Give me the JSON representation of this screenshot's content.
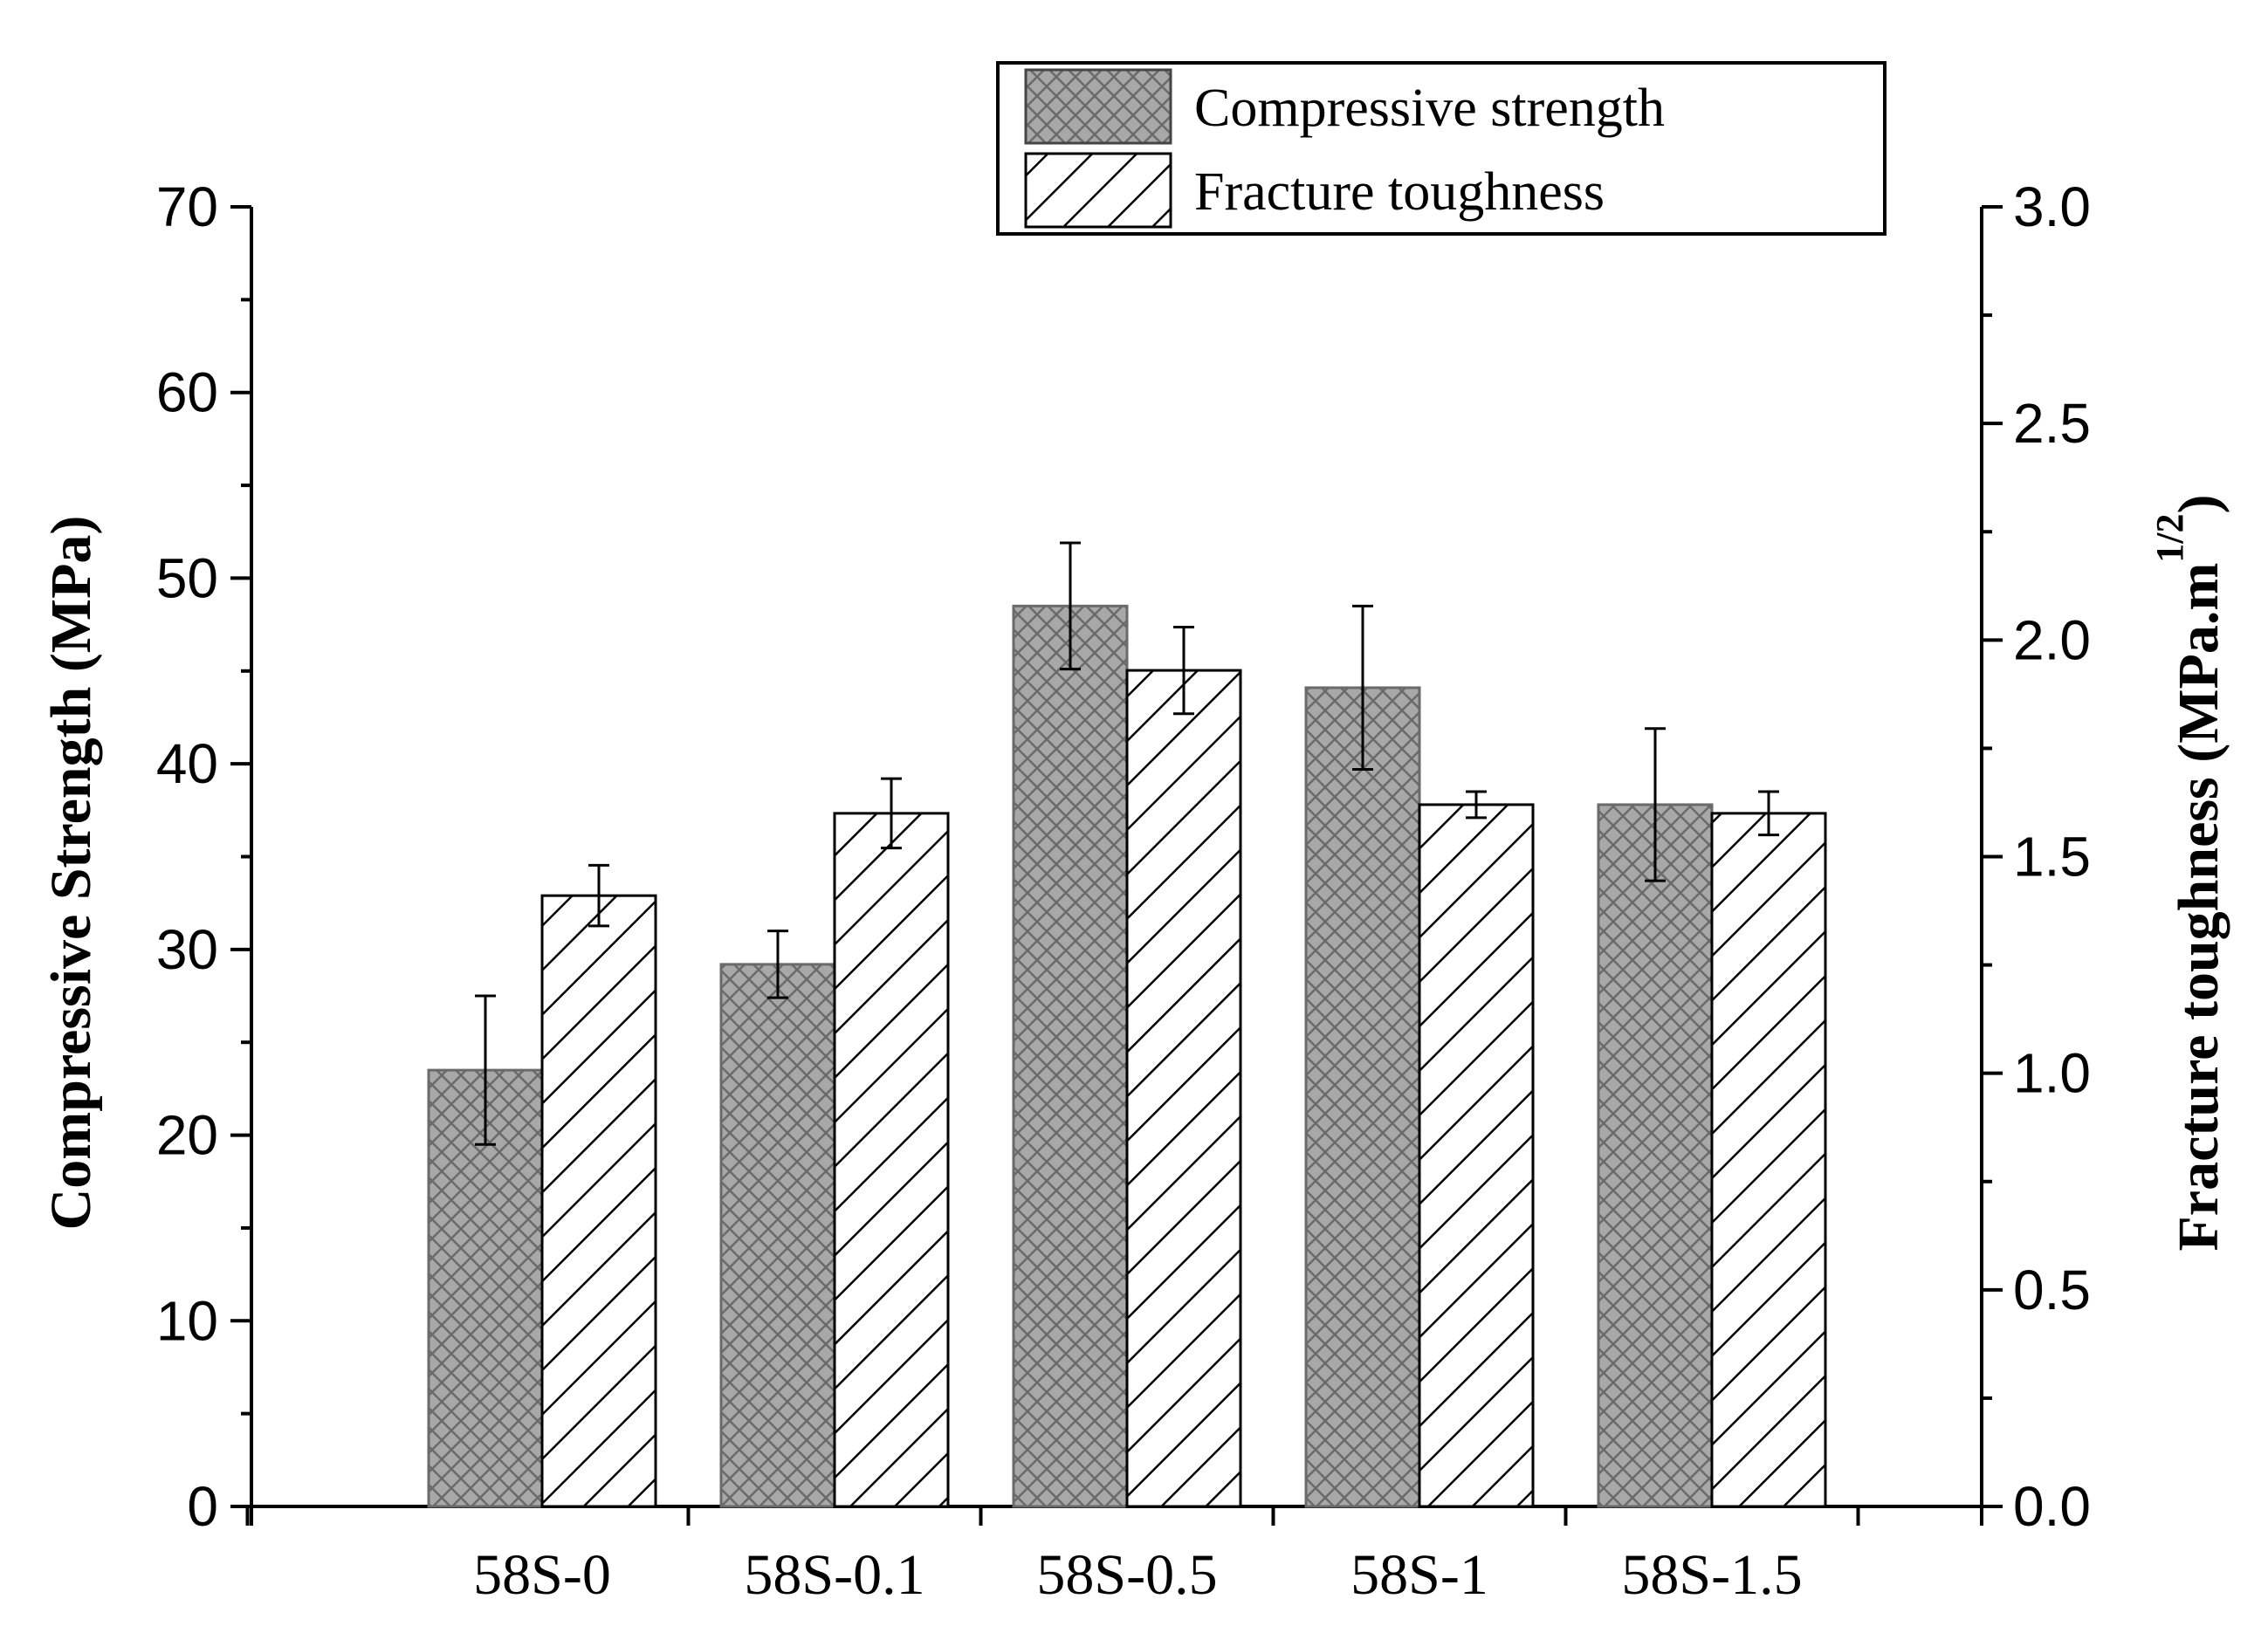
{
  "chart_data": {
    "type": "bar",
    "categories": [
      "58S-0",
      "58S-0.1",
      "58S-0.5",
      "58S-1",
      "58S-1.5"
    ],
    "series": [
      {
        "name": "Compressive strength",
        "axis": "left",
        "values": [
          23.5,
          29.2,
          48.5,
          44.1,
          37.8
        ],
        "errors": [
          4.0,
          1.8,
          3.4,
          4.4,
          4.1
        ],
        "fill": "#a8a8a8",
        "pattern": "crosshatch"
      },
      {
        "name": "Fracture toughness",
        "axis": "right",
        "values": [
          1.41,
          1.6,
          1.93,
          1.62,
          1.6
        ],
        "errors": [
          0.07,
          0.08,
          0.1,
          0.03,
          0.05
        ],
        "fill": "#ffffff",
        "pattern": "diagonal"
      }
    ],
    "ylabel_left": "Compressive Strength (MPa)",
    "ylabel_right_main": "Fracture toughness (MPa.m",
    "ylabel_right_sup": "1/2",
    "ylabel_right_close": ")",
    "ylim_left": [
      0,
      70
    ],
    "ylim_right": [
      0,
      3.0
    ],
    "left_ticks": [
      "0",
      "10",
      "20",
      "30",
      "40",
      "50",
      "60",
      "70"
    ],
    "right_ticks": [
      "0.0",
      "0.5",
      "1.0",
      "1.5",
      "2.0",
      "2.5",
      "3.0"
    ],
    "legend_position": "top-right",
    "grid": false,
    "colors": {
      "hatch": "#555555",
      "edge": "#444444"
    }
  }
}
